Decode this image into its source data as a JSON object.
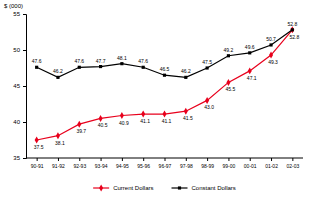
{
  "chart_data": {
    "type": "line",
    "y_label": "$ (000)",
    "categories": [
      "90-91",
      "91-92",
      "92-93",
      "93-94",
      "94-95",
      "95-96",
      "96-97",
      "97-98",
      "98-99",
      "99-00",
      "00-01",
      "01-02",
      "02-03"
    ],
    "series": [
      {
        "name": "Current Dollars",
        "color": "#e8001c",
        "marker": "diamond",
        "values": [
          37.5,
          38.1,
          39.7,
          40.5,
          40.9,
          41.1,
          41.1,
          41.5,
          43.0,
          45.5,
          47.1,
          49.3,
          52.8
        ],
        "value_labels": [
          "37.5",
          "38.1",
          "39.7",
          "40.5",
          "40.9",
          "41.1",
          "41.1",
          "41.5",
          "43.0",
          "45.5",
          "47.1",
          "49.3",
          "52.8"
        ]
      },
      {
        "name": "Constant Dollars",
        "color": "#000000",
        "marker": "square",
        "values": [
          47.6,
          46.2,
          47.6,
          47.7,
          48.1,
          47.6,
          46.5,
          46.2,
          47.5,
          49.2,
          49.6,
          50.7,
          52.8
        ],
        "value_labels": [
          "47.6",
          "46.2",
          "47.6",
          "47.7",
          "48.1",
          "47.6",
          "46.5",
          "46.2",
          "47.5",
          "49.2",
          "49.6",
          "50.7",
          "52.8"
        ]
      }
    ],
    "ylim": [
      35,
      55
    ],
    "yticks": [
      35,
      40,
      45,
      50,
      55
    ],
    "grid": false,
    "data_labels": true,
    "legend": "bottom"
  }
}
